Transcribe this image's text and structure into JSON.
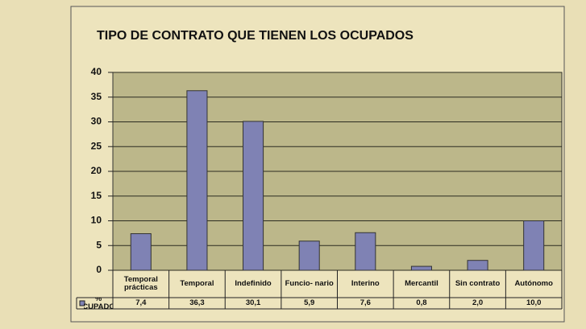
{
  "chart_data": {
    "type": "bar",
    "title": "TIPO DE CONTRATO QUE TIENEN LOS OCUPADOS",
    "categories": [
      "Temporal prácticas",
      "Temporal",
      "Indefinido",
      "Funcio- nario",
      "Interino",
      "Mercantil",
      "Sin contrato",
      "Autónomo"
    ],
    "series": [
      {
        "name": "% OCUPADOS",
        "color": "#7f82b4",
        "values": [
          7.4,
          36.3,
          30.1,
          5.9,
          7.6,
          0.8,
          2.0,
          10.0
        ],
        "value_labels": [
          "7,4",
          "36,3",
          "30,1",
          "5,9",
          "7,6",
          "0,8",
          "2,0",
          "10,0"
        ]
      }
    ],
    "ylim": [
      0,
      40
    ],
    "yticks": [
      0,
      5,
      10,
      15,
      20,
      25,
      30,
      35,
      40
    ],
    "grid": true
  }
}
